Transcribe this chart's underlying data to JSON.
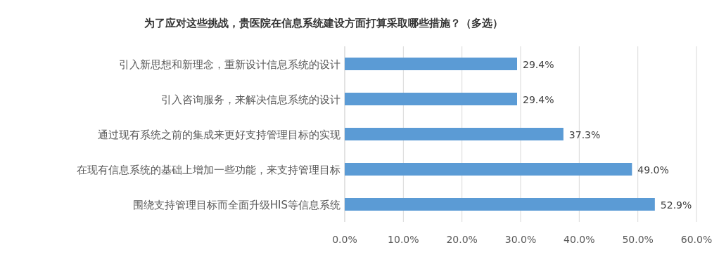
{
  "chart_data": {
    "type": "bar",
    "orientation": "horizontal",
    "title": "为了应对这些挑战，贵医院在信息系统建设方面打算采取哪些措施？（多选）",
    "categories": [
      "引入新思想和新理念，重新设计信息系统的设计",
      "引入咨询服务，来解决信息系统的设计",
      "通过现有系统之前的集成来更好支持管理目标的实现",
      "在现有信息系统的基础上增加一些功能，来支持管理目标",
      "围绕支持管理目标而全面升级HIS等信息系统"
    ],
    "values": [
      29.4,
      29.4,
      37.3,
      49.0,
      52.9
    ],
    "value_labels": [
      "29.4%",
      "29.4%",
      "37.3%",
      "49.0%",
      "52.9%"
    ],
    "color": "#5b9bd5",
    "xlim": [
      0,
      60
    ],
    "xticks": [
      {
        "value": 0,
        "label": "0.0%"
      },
      {
        "value": 10,
        "label": "10.0%"
      },
      {
        "value": 20,
        "label": "20.0%"
      },
      {
        "value": 30,
        "label": "30.0%"
      },
      {
        "value": 40,
        "label": "40.0%"
      },
      {
        "value": 50,
        "label": "50.0%"
      },
      {
        "value": 60,
        "label": "60.0%"
      }
    ],
    "grid": "x"
  }
}
